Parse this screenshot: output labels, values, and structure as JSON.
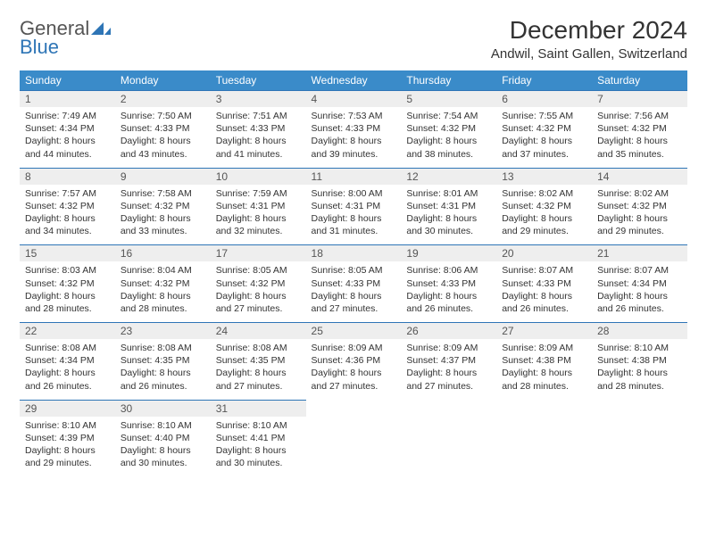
{
  "brand": {
    "general": "General",
    "blue": "Blue"
  },
  "header": {
    "title": "December 2024",
    "location": "Andwil, Saint Gallen, Switzerland"
  },
  "colors": {
    "header_bg": "#3a8bc9",
    "header_text": "#ffffff",
    "rule": "#2e75b6",
    "day_number_bg": "#eeeeee",
    "body_text": "#333333",
    "logo_blue": "#2e75b6"
  },
  "weekdays": [
    "Sunday",
    "Monday",
    "Tuesday",
    "Wednesday",
    "Thursday",
    "Friday",
    "Saturday"
  ],
  "weeks": [
    [
      {
        "day": "1",
        "sunrise": "Sunrise: 7:49 AM",
        "sunset": "Sunset: 4:34 PM",
        "daylight1": "Daylight: 8 hours",
        "daylight2": "and 44 minutes."
      },
      {
        "day": "2",
        "sunrise": "Sunrise: 7:50 AM",
        "sunset": "Sunset: 4:33 PM",
        "daylight1": "Daylight: 8 hours",
        "daylight2": "and 43 minutes."
      },
      {
        "day": "3",
        "sunrise": "Sunrise: 7:51 AM",
        "sunset": "Sunset: 4:33 PM",
        "daylight1": "Daylight: 8 hours",
        "daylight2": "and 41 minutes."
      },
      {
        "day": "4",
        "sunrise": "Sunrise: 7:53 AM",
        "sunset": "Sunset: 4:33 PM",
        "daylight1": "Daylight: 8 hours",
        "daylight2": "and 39 minutes."
      },
      {
        "day": "5",
        "sunrise": "Sunrise: 7:54 AM",
        "sunset": "Sunset: 4:32 PM",
        "daylight1": "Daylight: 8 hours",
        "daylight2": "and 38 minutes."
      },
      {
        "day": "6",
        "sunrise": "Sunrise: 7:55 AM",
        "sunset": "Sunset: 4:32 PM",
        "daylight1": "Daylight: 8 hours",
        "daylight2": "and 37 minutes."
      },
      {
        "day": "7",
        "sunrise": "Sunrise: 7:56 AM",
        "sunset": "Sunset: 4:32 PM",
        "daylight1": "Daylight: 8 hours",
        "daylight2": "and 35 minutes."
      }
    ],
    [
      {
        "day": "8",
        "sunrise": "Sunrise: 7:57 AM",
        "sunset": "Sunset: 4:32 PM",
        "daylight1": "Daylight: 8 hours",
        "daylight2": "and 34 minutes."
      },
      {
        "day": "9",
        "sunrise": "Sunrise: 7:58 AM",
        "sunset": "Sunset: 4:32 PM",
        "daylight1": "Daylight: 8 hours",
        "daylight2": "and 33 minutes."
      },
      {
        "day": "10",
        "sunrise": "Sunrise: 7:59 AM",
        "sunset": "Sunset: 4:31 PM",
        "daylight1": "Daylight: 8 hours",
        "daylight2": "and 32 minutes."
      },
      {
        "day": "11",
        "sunrise": "Sunrise: 8:00 AM",
        "sunset": "Sunset: 4:31 PM",
        "daylight1": "Daylight: 8 hours",
        "daylight2": "and 31 minutes."
      },
      {
        "day": "12",
        "sunrise": "Sunrise: 8:01 AM",
        "sunset": "Sunset: 4:31 PM",
        "daylight1": "Daylight: 8 hours",
        "daylight2": "and 30 minutes."
      },
      {
        "day": "13",
        "sunrise": "Sunrise: 8:02 AM",
        "sunset": "Sunset: 4:32 PM",
        "daylight1": "Daylight: 8 hours",
        "daylight2": "and 29 minutes."
      },
      {
        "day": "14",
        "sunrise": "Sunrise: 8:02 AM",
        "sunset": "Sunset: 4:32 PM",
        "daylight1": "Daylight: 8 hours",
        "daylight2": "and 29 minutes."
      }
    ],
    [
      {
        "day": "15",
        "sunrise": "Sunrise: 8:03 AM",
        "sunset": "Sunset: 4:32 PM",
        "daylight1": "Daylight: 8 hours",
        "daylight2": "and 28 minutes."
      },
      {
        "day": "16",
        "sunrise": "Sunrise: 8:04 AM",
        "sunset": "Sunset: 4:32 PM",
        "daylight1": "Daylight: 8 hours",
        "daylight2": "and 28 minutes."
      },
      {
        "day": "17",
        "sunrise": "Sunrise: 8:05 AM",
        "sunset": "Sunset: 4:32 PM",
        "daylight1": "Daylight: 8 hours",
        "daylight2": "and 27 minutes."
      },
      {
        "day": "18",
        "sunrise": "Sunrise: 8:05 AM",
        "sunset": "Sunset: 4:33 PM",
        "daylight1": "Daylight: 8 hours",
        "daylight2": "and 27 minutes."
      },
      {
        "day": "19",
        "sunrise": "Sunrise: 8:06 AM",
        "sunset": "Sunset: 4:33 PM",
        "daylight1": "Daylight: 8 hours",
        "daylight2": "and 26 minutes."
      },
      {
        "day": "20",
        "sunrise": "Sunrise: 8:07 AM",
        "sunset": "Sunset: 4:33 PM",
        "daylight1": "Daylight: 8 hours",
        "daylight2": "and 26 minutes."
      },
      {
        "day": "21",
        "sunrise": "Sunrise: 8:07 AM",
        "sunset": "Sunset: 4:34 PM",
        "daylight1": "Daylight: 8 hours",
        "daylight2": "and 26 minutes."
      }
    ],
    [
      {
        "day": "22",
        "sunrise": "Sunrise: 8:08 AM",
        "sunset": "Sunset: 4:34 PM",
        "daylight1": "Daylight: 8 hours",
        "daylight2": "and 26 minutes."
      },
      {
        "day": "23",
        "sunrise": "Sunrise: 8:08 AM",
        "sunset": "Sunset: 4:35 PM",
        "daylight1": "Daylight: 8 hours",
        "daylight2": "and 26 minutes."
      },
      {
        "day": "24",
        "sunrise": "Sunrise: 8:08 AM",
        "sunset": "Sunset: 4:35 PM",
        "daylight1": "Daylight: 8 hours",
        "daylight2": "and 27 minutes."
      },
      {
        "day": "25",
        "sunrise": "Sunrise: 8:09 AM",
        "sunset": "Sunset: 4:36 PM",
        "daylight1": "Daylight: 8 hours",
        "daylight2": "and 27 minutes."
      },
      {
        "day": "26",
        "sunrise": "Sunrise: 8:09 AM",
        "sunset": "Sunset: 4:37 PM",
        "daylight1": "Daylight: 8 hours",
        "daylight2": "and 27 minutes."
      },
      {
        "day": "27",
        "sunrise": "Sunrise: 8:09 AM",
        "sunset": "Sunset: 4:38 PM",
        "daylight1": "Daylight: 8 hours",
        "daylight2": "and 28 minutes."
      },
      {
        "day": "28",
        "sunrise": "Sunrise: 8:10 AM",
        "sunset": "Sunset: 4:38 PM",
        "daylight1": "Daylight: 8 hours",
        "daylight2": "and 28 minutes."
      }
    ],
    [
      {
        "day": "29",
        "sunrise": "Sunrise: 8:10 AM",
        "sunset": "Sunset: 4:39 PM",
        "daylight1": "Daylight: 8 hours",
        "daylight2": "and 29 minutes."
      },
      {
        "day": "30",
        "sunrise": "Sunrise: 8:10 AM",
        "sunset": "Sunset: 4:40 PM",
        "daylight1": "Daylight: 8 hours",
        "daylight2": "and 30 minutes."
      },
      {
        "day": "31",
        "sunrise": "Sunrise: 8:10 AM",
        "sunset": "Sunset: 4:41 PM",
        "daylight1": "Daylight: 8 hours",
        "daylight2": "and 30 minutes."
      },
      null,
      null,
      null,
      null
    ]
  ]
}
